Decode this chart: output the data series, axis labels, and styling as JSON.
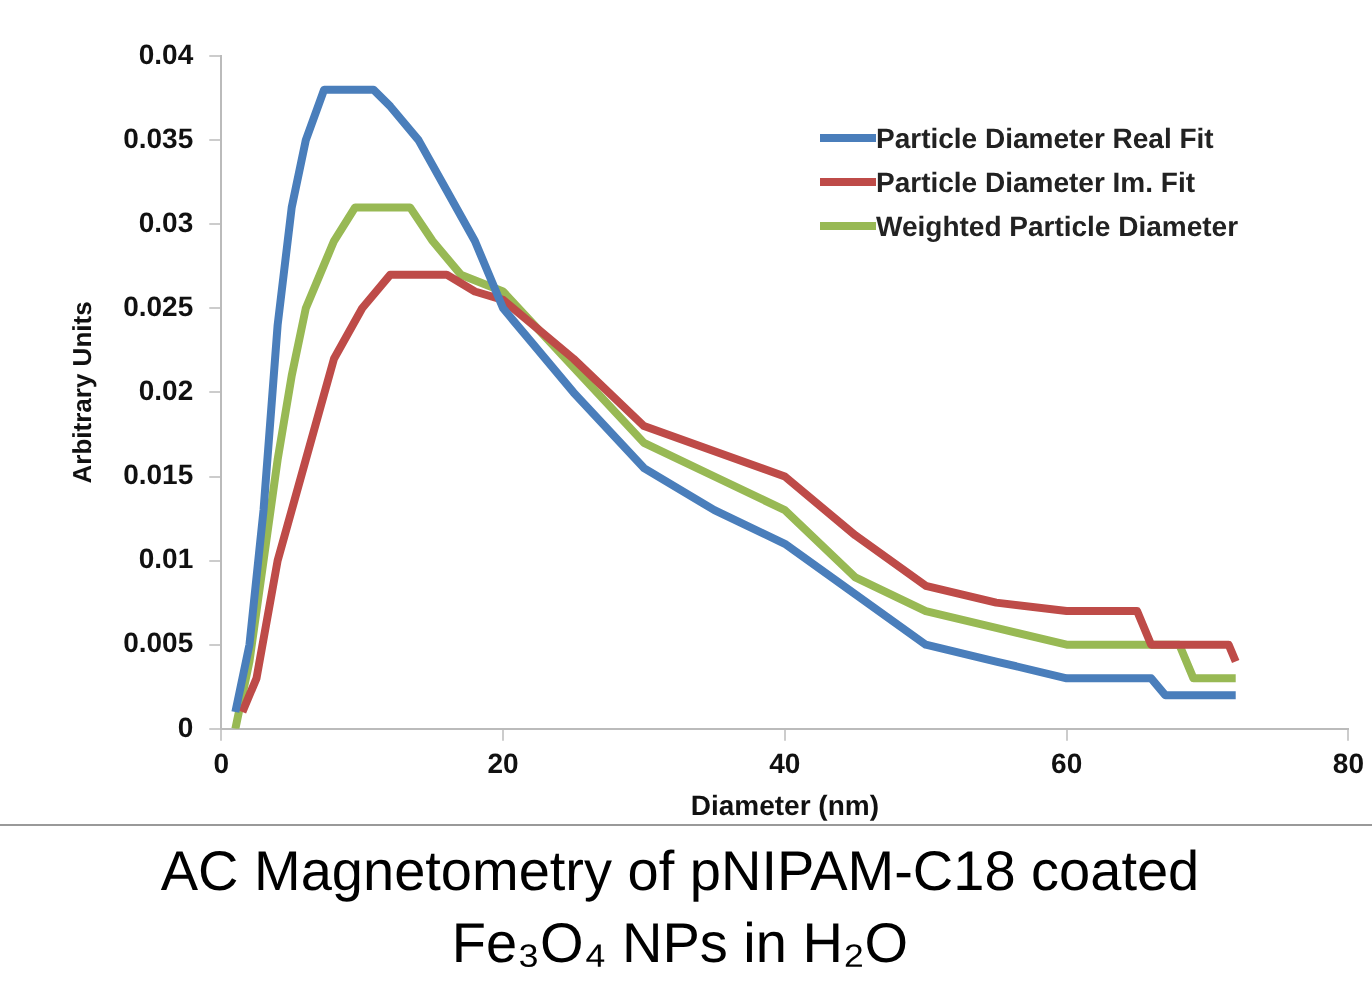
{
  "chart_data": {
    "type": "line",
    "xlabel": "Diameter (nm)",
    "ylabel": "Arbitrary Units",
    "xlim": [
      0,
      80
    ],
    "xticks": [
      0,
      20,
      40,
      60,
      80
    ],
    "ylim": [
      0,
      0.04
    ],
    "yticks": [
      0,
      0.005,
      0.01,
      0.015,
      0.02,
      0.025,
      0.03,
      0.035,
      0.04
    ],
    "grid": false,
    "legend": "top right",
    "marker": "none",
    "line_style": "solid",
    "series": [
      {
        "name": "Particle Diameter Real Fit",
        "color": "#4a7ebb",
        "x": [
          1,
          2,
          3,
          4,
          5,
          6,
          7.3,
          10.8,
          12,
          14,
          16,
          18,
          20,
          22,
          25,
          30,
          35,
          40,
          45,
          50,
          55,
          60,
          66,
          67,
          72
        ],
        "values": [
          0.001,
          0.005,
          0.013,
          0.024,
          0.031,
          0.035,
          0.038,
          0.038,
          0.037,
          0.035,
          0.032,
          0.029,
          0.025,
          0.023,
          0.02,
          0.0155,
          0.013,
          0.011,
          0.008,
          0.005,
          0.004,
          0.003,
          0.003,
          0.002,
          0.002
        ]
      },
      {
        "name": "Particle Diameter Im. Fit",
        "color": "#be4b48",
        "x": [
          1.5,
          2.5,
          4,
          6,
          8,
          10,
          12,
          16,
          18,
          20,
          25,
          30,
          35,
          40,
          45,
          50,
          55,
          60,
          65,
          66,
          71.5,
          72
        ],
        "values": [
          0.001,
          0.003,
          0.01,
          0.016,
          0.022,
          0.025,
          0.027,
          0.027,
          0.026,
          0.0255,
          0.022,
          0.018,
          0.0165,
          0.015,
          0.0115,
          0.0085,
          0.0075,
          0.007,
          0.007,
          0.005,
          0.005,
          0.004
        ]
      },
      {
        "name": "Weighted Particle Diameter",
        "color": "#98b954",
        "x": [
          1,
          2,
          3,
          4,
          5,
          6,
          7,
          8,
          9.5,
          13.4,
          15,
          17,
          20,
          25,
          30,
          35,
          40,
          45,
          50,
          55,
          60,
          68,
          69,
          72
        ],
        "values": [
          0,
          0.004,
          0.01,
          0.016,
          0.021,
          0.025,
          0.027,
          0.029,
          0.031,
          0.031,
          0.029,
          0.027,
          0.026,
          0.0215,
          0.017,
          0.015,
          0.013,
          0.009,
          0.007,
          0.006,
          0.005,
          0.005,
          0.003,
          0.003
        ]
      }
    ],
    "annotations": [
      "AC Magnetometry of pNIPAM-C18 coated Fe₃O₄ NPs in H₂O"
    ]
  }
}
